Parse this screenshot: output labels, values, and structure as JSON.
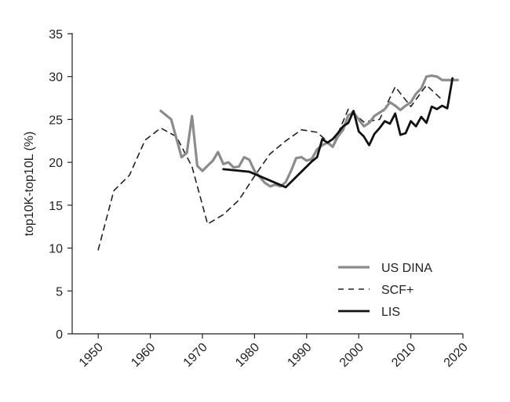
{
  "chart_data": {
    "type": "line",
    "title": "",
    "xlabel": "",
    "ylabel": "top10K-top10L (%)",
    "xlim": [
      1945,
      2020
    ],
    "ylim": [
      0,
      35
    ],
    "xticks": [
      1950,
      1960,
      1970,
      1980,
      1990,
      2000,
      2010,
      2020
    ],
    "yticks": [
      0,
      5,
      10,
      15,
      20,
      25,
      30,
      35
    ],
    "grid": false,
    "legend_position": "lower-right",
    "series": [
      {
        "name": "US DINA",
        "style": "solid",
        "color": "#8c8c8c",
        "points": [
          [
            1962,
            26.0
          ],
          [
            1964,
            25.0
          ],
          [
            1966,
            20.6
          ],
          [
            1967,
            21.1
          ],
          [
            1968,
            25.4
          ],
          [
            1969,
            19.6
          ],
          [
            1970,
            19.0
          ],
          [
            1971,
            19.6
          ],
          [
            1972,
            20.2
          ],
          [
            1973,
            21.2
          ],
          [
            1974,
            19.8
          ],
          [
            1975,
            20.0
          ],
          [
            1976,
            19.4
          ],
          [
            1977,
            19.5
          ],
          [
            1978,
            20.6
          ],
          [
            1979,
            20.3
          ],
          [
            1980,
            19.0
          ],
          [
            1981,
            18.3
          ],
          [
            1982,
            17.6
          ],
          [
            1983,
            17.2
          ],
          [
            1984,
            17.4
          ],
          [
            1985,
            17.2
          ],
          [
            1986,
            17.7
          ],
          [
            1987,
            19.0
          ],
          [
            1988,
            20.5
          ],
          [
            1989,
            20.6
          ],
          [
            1990,
            20.2
          ],
          [
            1991,
            20.4
          ],
          [
            1992,
            21.5
          ],
          [
            1993,
            22.0
          ],
          [
            1994,
            22.3
          ],
          [
            1995,
            21.8
          ],
          [
            1996,
            23.0
          ],
          [
            1997,
            23.8
          ],
          [
            1998,
            25.5
          ],
          [
            1999,
            25.8
          ],
          [
            2000,
            25.0
          ],
          [
            2001,
            24.2
          ],
          [
            2002,
            24.6
          ],
          [
            2003,
            25.4
          ],
          [
            2004,
            25.8
          ],
          [
            2005,
            26.2
          ],
          [
            2006,
            27.0
          ],
          [
            2007,
            26.6
          ],
          [
            2008,
            26.1
          ],
          [
            2009,
            26.6
          ],
          [
            2010,
            27.0
          ],
          [
            2011,
            28.0
          ],
          [
            2012,
            28.6
          ],
          [
            2013,
            30.0
          ],
          [
            2014,
            30.1
          ],
          [
            2015,
            30.0
          ],
          [
            2016,
            29.6
          ],
          [
            2017,
            29.6
          ],
          [
            2018,
            29.6
          ],
          [
            2019,
            29.6
          ]
        ]
      },
      {
        "name": "SCF+",
        "style": "dashed",
        "color": "#222222",
        "points": [
          [
            1950,
            9.8
          ],
          [
            1953,
            16.7
          ],
          [
            1956,
            18.5
          ],
          [
            1959,
            22.6
          ],
          [
            1962,
            24.0
          ],
          [
            1965,
            23.0
          ],
          [
            1968,
            19.5
          ],
          [
            1971,
            12.8
          ],
          [
            1974,
            13.9
          ],
          [
            1977,
            15.6
          ],
          [
            1980,
            18.4
          ],
          [
            1983,
            21.0
          ],
          [
            1986,
            22.5
          ],
          [
            1989,
            23.8
          ],
          [
            1992,
            23.5
          ],
          [
            1995,
            21.9
          ],
          [
            1998,
            26.2
          ],
          [
            2001,
            24.7
          ],
          [
            2004,
            25.0
          ],
          [
            2007,
            28.8
          ],
          [
            2010,
            26.5
          ],
          [
            2013,
            29.0
          ],
          [
            2016,
            27.3
          ]
        ]
      },
      {
        "name": "LIS",
        "style": "solid",
        "color": "#111111",
        "points": [
          [
            1974,
            19.2
          ],
          [
            1979,
            18.9
          ],
          [
            1986,
            17.1
          ],
          [
            1991,
            20.1
          ],
          [
            1992,
            20.6
          ],
          [
            1993,
            22.7
          ],
          [
            1994,
            22.3
          ],
          [
            1995,
            22.7
          ],
          [
            1996,
            23.4
          ],
          [
            1997,
            24.2
          ],
          [
            1998,
            24.6
          ],
          [
            1999,
            26.0
          ],
          [
            2000,
            23.6
          ],
          [
            2001,
            23.0
          ],
          [
            2002,
            22.0
          ],
          [
            2003,
            23.3
          ],
          [
            2004,
            24.0
          ],
          [
            2005,
            24.8
          ],
          [
            2006,
            24.5
          ],
          [
            2007,
            25.7
          ],
          [
            2008,
            23.2
          ],
          [
            2009,
            23.4
          ],
          [
            2010,
            24.8
          ],
          [
            2011,
            24.2
          ],
          [
            2012,
            25.3
          ],
          [
            2013,
            24.6
          ],
          [
            2014,
            26.5
          ],
          [
            2015,
            26.2
          ],
          [
            2016,
            26.6
          ],
          [
            2017,
            26.3
          ],
          [
            2018,
            29.8
          ]
        ]
      }
    ]
  }
}
